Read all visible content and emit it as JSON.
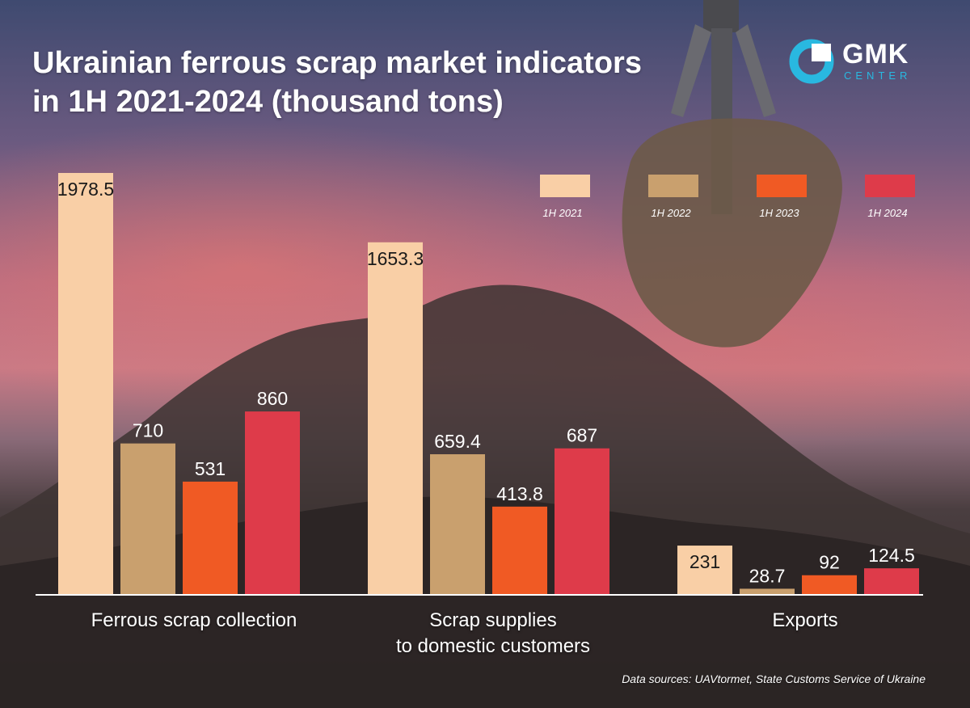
{
  "title_lines": [
    "Ukrainian ferrous scrap market indicators",
    "in 1H 2021-2024 (thousand tons)"
  ],
  "logo": {
    "name": "GMK",
    "sub": "CENTER"
  },
  "source": "Data sources: UAVtormet, State Customs Service of Ukraine",
  "colors": {
    "1H 2021": "#f9cfa6",
    "1H 2022": "#c9a06e",
    "1H 2023": "#f05a24",
    "1H 2024": "#de3b4a"
  },
  "chart_data": {
    "type": "bar",
    "title": "Ukrainian ferrous scrap market indicators in 1H 2021-2024 (thousand tons)",
    "categories": [
      "Ferrous scrap collection",
      "Scrap supplies to domestic customers",
      "Exports"
    ],
    "category_label_lines": [
      [
        "Ferrous scrap collection"
      ],
      [
        "Scrap supplies",
        "to domestic customers"
      ],
      [
        "Exports"
      ]
    ],
    "series": [
      {
        "name": "1H 2021",
        "values": [
          1978.5,
          1653.3,
          231
        ]
      },
      {
        "name": "1H 2022",
        "values": [
          710,
          659.4,
          28.7
        ]
      },
      {
        "name": "1H 2023",
        "values": [
          531,
          413.8,
          92
        ]
      },
      {
        "name": "1H 2024",
        "values": [
          860,
          687,
          124.5
        ]
      }
    ],
    "value_labels": [
      [
        "1978.5",
        "1653.3",
        "231"
      ],
      [
        "710",
        "659.4",
        "28.7"
      ],
      [
        "531",
        "413.8",
        "92"
      ],
      [
        "860",
        "687",
        "124.5"
      ]
    ],
    "ylim": [
      0,
      1978.5
    ],
    "legend_position": "top-right",
    "grid": false
  }
}
